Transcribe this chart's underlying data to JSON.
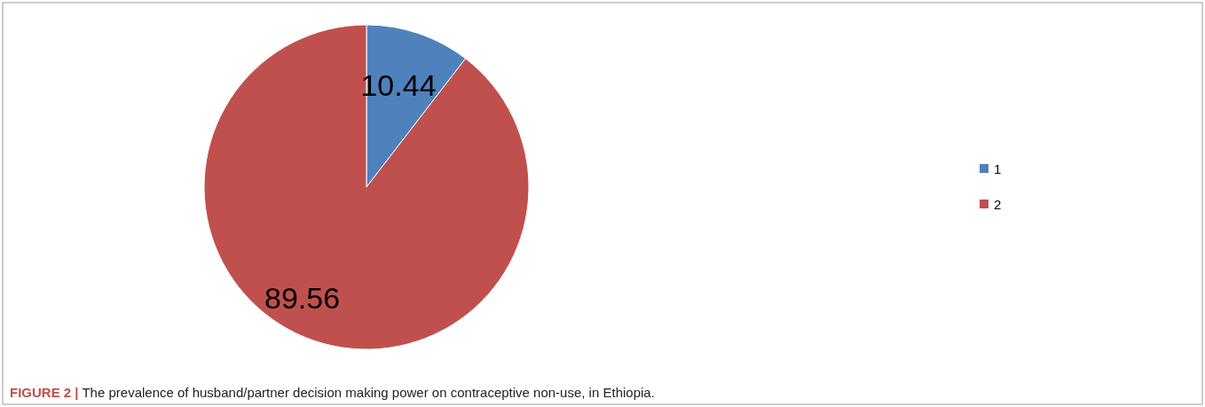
{
  "chart_data": {
    "type": "pie",
    "title": "FIGURE 2 | The prevalence of husband/partner decision making power on contraceptive non-use, in Ethiopia.",
    "categories": [
      "1",
      "2"
    ],
    "values": [
      10.44,
      89.56
    ],
    "colors": [
      "#4f81bd",
      "#c0504d"
    ],
    "data_labels": true,
    "legend": "right"
  }
}
